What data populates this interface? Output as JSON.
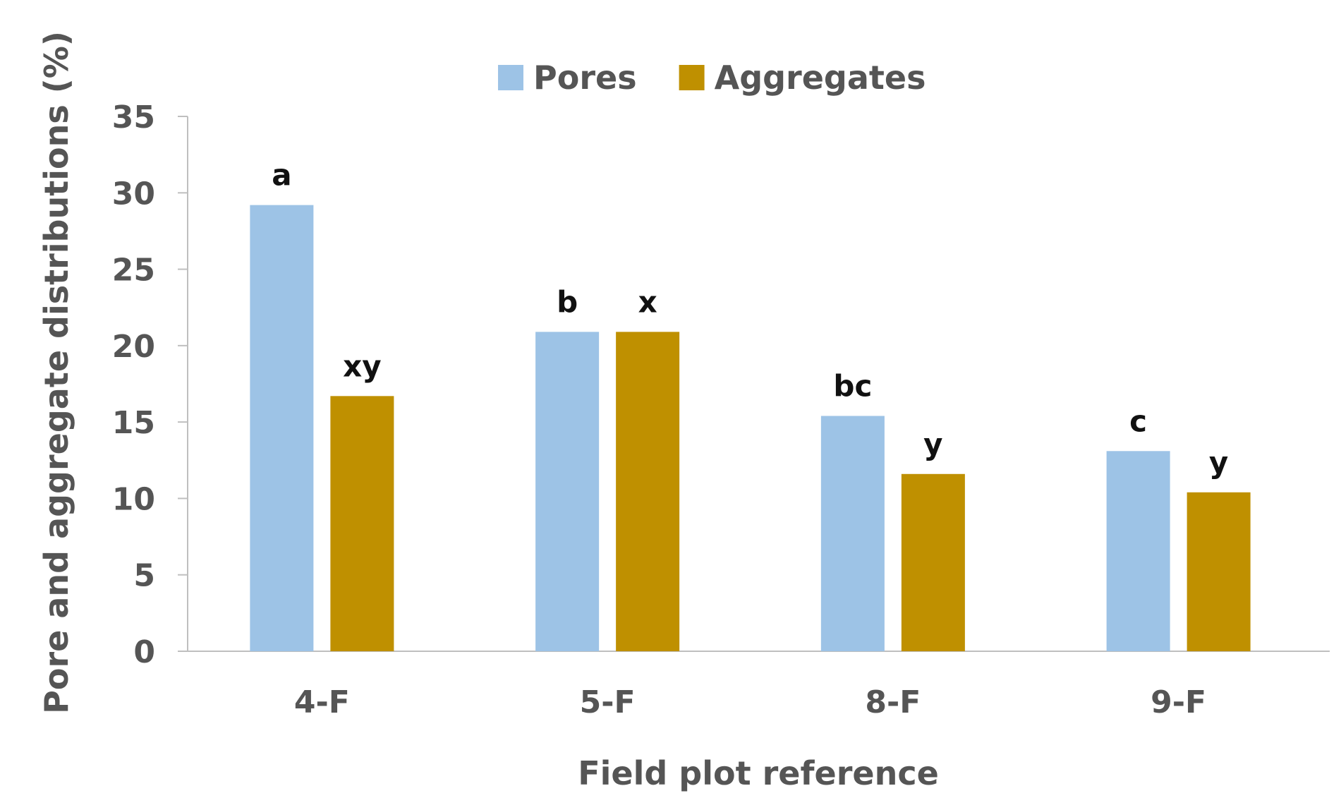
{
  "chart_data": {
    "type": "bar",
    "title": "",
    "xlabel": "Field plot reference",
    "ylabel": "Pore and aggregate distributions (%)",
    "ylim": [
      0,
      35
    ],
    "yticks": [
      0,
      5,
      10,
      15,
      20,
      25,
      30,
      35
    ],
    "categories": [
      "4-F",
      "5-F",
      "8-F",
      "9-F"
    ],
    "grid": false,
    "legend_position": "top-center",
    "series": [
      {
        "name": "Pores",
        "color": "#9dc3e6",
        "values": [
          29.2,
          20.9,
          15.4,
          13.1
        ],
        "labels": [
          "a",
          "b",
          "bc",
          "c"
        ]
      },
      {
        "name": "Aggregates",
        "color": "#bf9000",
        "values": [
          16.7,
          20.9,
          11.6,
          10.4
        ],
        "labels": [
          "xy",
          "x",
          "y",
          "y"
        ]
      }
    ]
  }
}
